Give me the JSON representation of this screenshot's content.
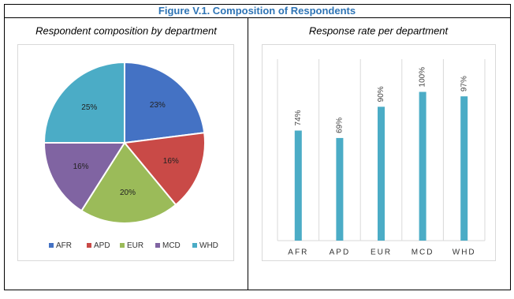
{
  "title": "Figure V.1. Composition of Respondents",
  "chart_data": [
    {
      "type": "pie",
      "title": "Respondent composition by department",
      "categories": [
        "AFR",
        "APD",
        "EUR",
        "MCD",
        "WHD"
      ],
      "values": [
        23,
        16,
        20,
        16,
        25
      ],
      "value_labels": [
        "23%",
        "16%",
        "20%",
        "16%",
        "25%"
      ],
      "colors": [
        "#4472c4",
        "#c94a47",
        "#9bbb59",
        "#8064a2",
        "#4bacc6"
      ],
      "legend": "bottom"
    },
    {
      "type": "bar",
      "title": "Response rate per department",
      "categories": [
        "AFR",
        "APD",
        "EUR",
        "MCD",
        "WHD"
      ],
      "values": [
        74,
        69,
        90,
        100,
        97
      ],
      "value_labels": [
        "74%",
        "69%",
        "90%",
        "100%",
        "97%"
      ],
      "color": "#4bacc6",
      "ylim": [
        0,
        122
      ]
    }
  ]
}
